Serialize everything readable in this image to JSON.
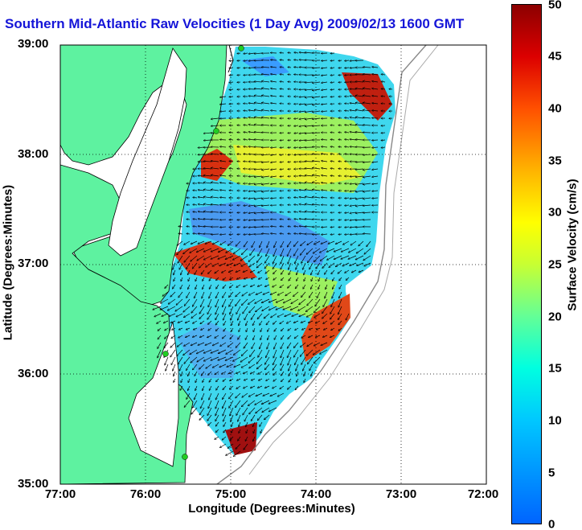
{
  "title": "Southern Mid-Atlantic Raw Velocities (1 Day Avg) 2009/02/13 1600 GMT",
  "axes": {
    "xlabel": "Longitude (Degrees:Minutes)",
    "ylabel": "Latitude (Degrees:Minutes)",
    "xticks": [
      "77:00",
      "76:00",
      "75:00",
      "74:00",
      "73:00",
      "72:00"
    ],
    "yticks": [
      "39:00",
      "38:00",
      "37:00",
      "36:00",
      "35:00"
    ],
    "xlim": [
      -77,
      -72
    ],
    "ylim": [
      35,
      39
    ],
    "grid": "dotted"
  },
  "colorbar": {
    "label": "Surface Velocity (cm/s)",
    "ticks": [
      "50",
      "45",
      "40",
      "35",
      "30",
      "25",
      "20",
      "15",
      "10",
      "5",
      "0"
    ],
    "min": 0,
    "max": 50,
    "colors": [
      "#0064ff",
      "#00c8ff",
      "#00ffe0",
      "#64ff96",
      "#c8ff32",
      "#ffff00",
      "#ffb400",
      "#ff5000",
      "#dc0000",
      "#8c0000"
    ]
  },
  "colors": {
    "land": "#5ef2a0",
    "coast": "#000000",
    "hf_sites": "#22cc22",
    "arrows": "#000000",
    "title": "#1515d8"
  }
}
